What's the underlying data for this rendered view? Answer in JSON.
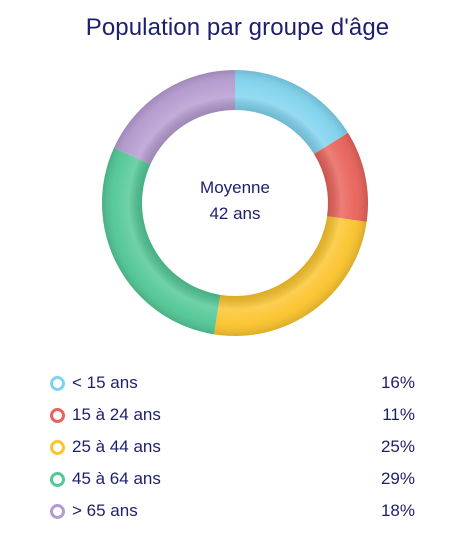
{
  "chart_data": {
    "type": "pie",
    "title": "Population par groupe d'âge",
    "center": {
      "line1": "Moyenne",
      "line2": "42 ans"
    },
    "categories": [
      "< 15 ans",
      "15 à 24 ans",
      "25 à 44 ans",
      "45 à 64 ans",
      "> 65 ans"
    ],
    "values": [
      16,
      11,
      25,
      29,
      18
    ],
    "value_labels": [
      "16%",
      "11%",
      "25%",
      "29%",
      "18%"
    ],
    "colors": [
      "#7fd3ee",
      "#e8625a",
      "#fbc42c",
      "#52c896",
      "#b59bd0"
    ],
    "legend_placement": "bottom"
  }
}
